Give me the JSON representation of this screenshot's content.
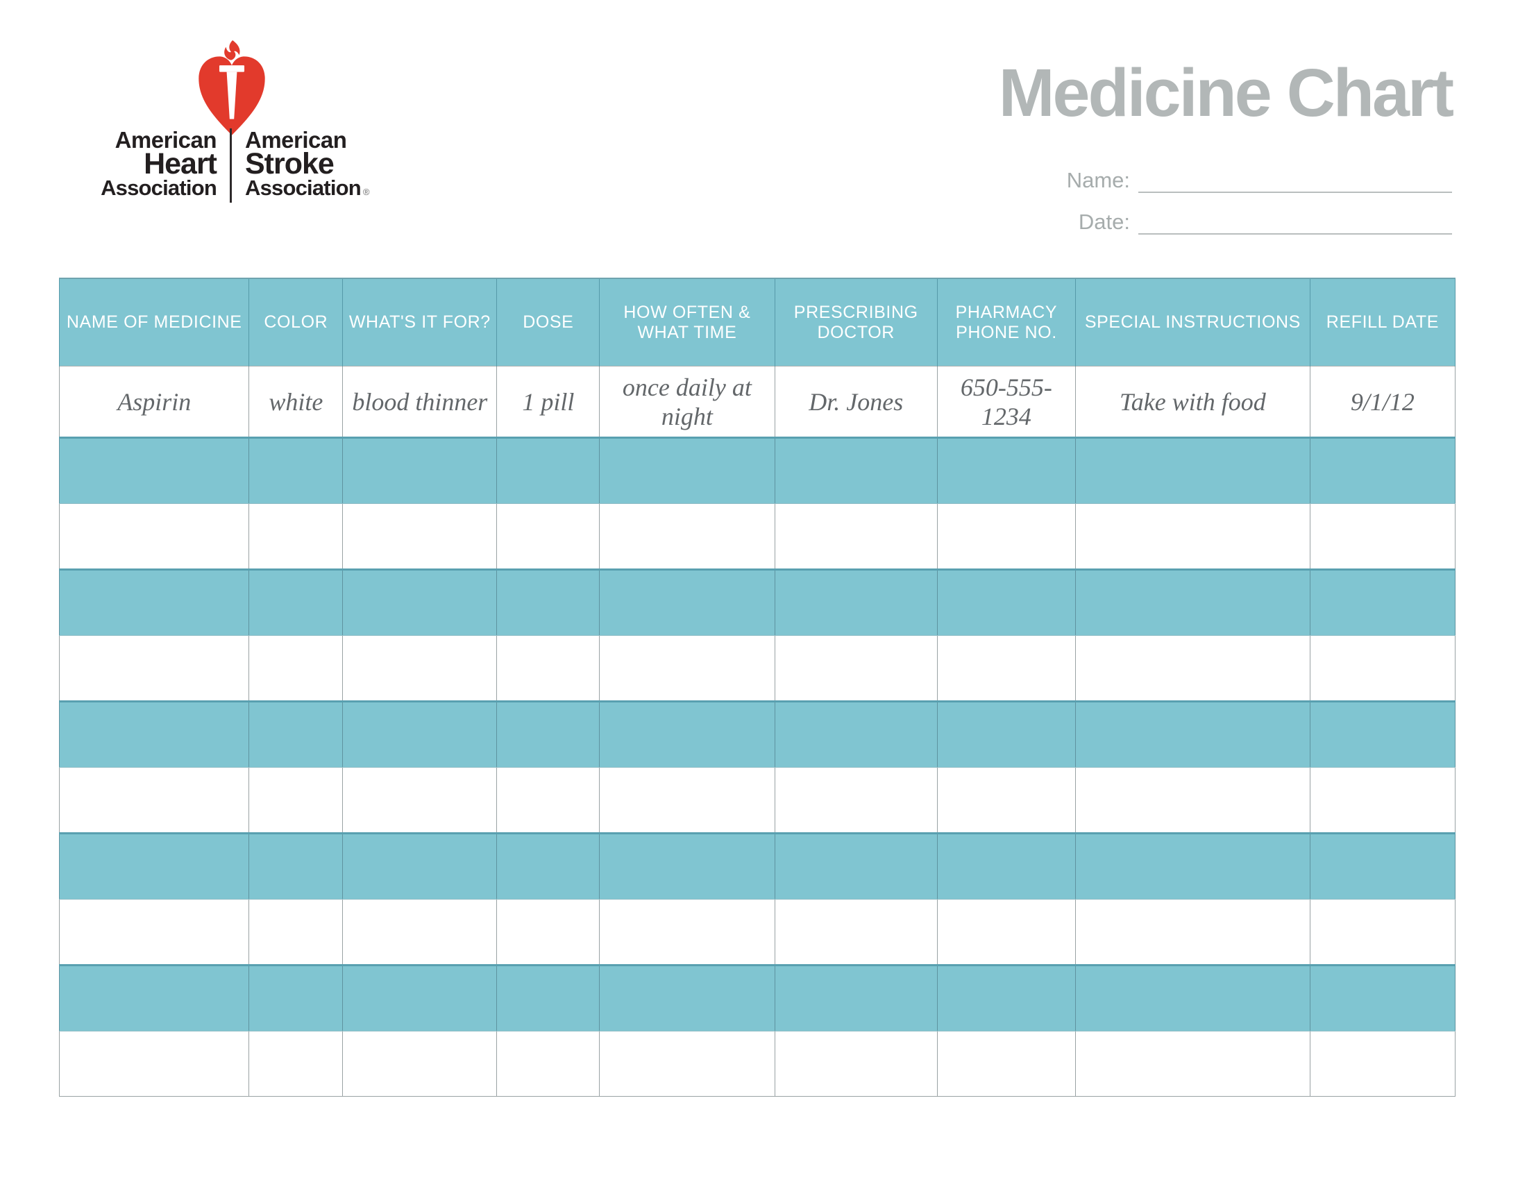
{
  "logo": {
    "heart_color": "#e23a2c",
    "text_color": "#231f20",
    "left": {
      "line1": "American",
      "line2": "Heart",
      "line3": "Association"
    },
    "right": {
      "line1": "American",
      "line2": "Stroke",
      "line3": "Association",
      "registered_mark": "®"
    }
  },
  "masthead": {
    "title": "Medicine Chart",
    "title_color": "#b2b7b7",
    "name_label": "Name:",
    "name_value": "",
    "date_label": "Date:",
    "date_value": ""
  },
  "table": {
    "accent_color": "#80c5d1",
    "columns": [
      "NAME OF MEDICINE",
      "COLOR",
      "WHAT'S IT FOR?",
      "DOSE",
      "HOW OFTEN &\nWHAT TIME",
      "PRESCRIBING\nDOCTOR",
      "PHARMACY\nPHONE NO.",
      "SPECIAL INSTRUCTIONS",
      "REFILL DATE"
    ],
    "rows": [
      {
        "shaded": false,
        "cells": [
          "Aspirin",
          "white",
          "blood thinner",
          "1 pill",
          "once daily at night",
          "Dr. Jones",
          "650-555-1234",
          "Take with food",
          "9/1/12"
        ]
      },
      {
        "shaded": true,
        "cells": [
          "",
          "",
          "",
          "",
          "",
          "",
          "",
          "",
          ""
        ]
      },
      {
        "shaded": false,
        "cells": [
          "",
          "",
          "",
          "",
          "",
          "",
          "",
          "",
          ""
        ]
      },
      {
        "shaded": true,
        "cells": [
          "",
          "",
          "",
          "",
          "",
          "",
          "",
          "",
          ""
        ]
      },
      {
        "shaded": false,
        "cells": [
          "",
          "",
          "",
          "",
          "",
          "",
          "",
          "",
          ""
        ]
      },
      {
        "shaded": true,
        "cells": [
          "",
          "",
          "",
          "",
          "",
          "",
          "",
          "",
          ""
        ]
      },
      {
        "shaded": false,
        "cells": [
          "",
          "",
          "",
          "",
          "",
          "",
          "",
          "",
          ""
        ]
      },
      {
        "shaded": true,
        "cells": [
          "",
          "",
          "",
          "",
          "",
          "",
          "",
          "",
          ""
        ]
      },
      {
        "shaded": false,
        "cells": [
          "",
          "",
          "",
          "",
          "",
          "",
          "",
          "",
          ""
        ]
      },
      {
        "shaded": true,
        "cells": [
          "",
          "",
          "",
          "",
          "",
          "",
          "",
          "",
          ""
        ]
      },
      {
        "shaded": false,
        "cells": [
          "",
          "",
          "",
          "",
          "",
          "",
          "",
          "",
          ""
        ]
      }
    ]
  }
}
